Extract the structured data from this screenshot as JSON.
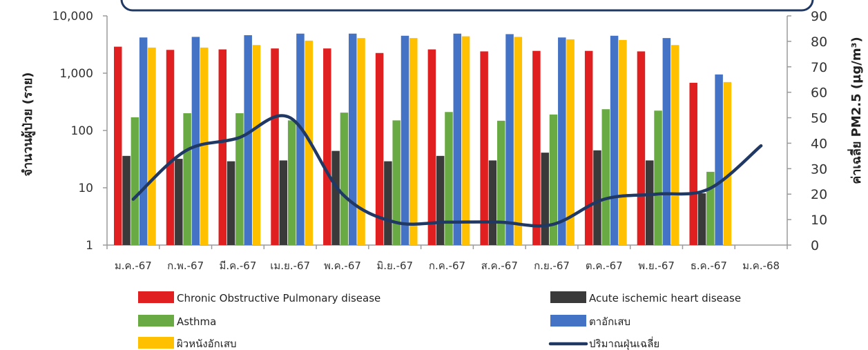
{
  "chart_data": {
    "type": "bar",
    "title": "",
    "ylabel": "จำนวนผู้ป่วย (ราย)",
    "y2label": "ค่าเฉลี่ย PM2.5 (µg/m³)",
    "y_scale": "log",
    "ylim": [
      1,
      10000
    ],
    "y_ticks": [
      "1",
      "10",
      "100",
      "1,000",
      "10,000"
    ],
    "y2lim": [
      0,
      90
    ],
    "y2_ticks": [
      "0",
      "10",
      "20",
      "30",
      "40",
      "50",
      "60",
      "70",
      "80",
      "90"
    ],
    "categories": [
      "ม.ค.-67",
      "ก.พ.-67",
      "มี.ค.-67",
      "เม.ย.-67",
      "พ.ค.-67",
      "มิ.ย.-67",
      "ก.ค.-67",
      "ส.ค.-67",
      "ก.ย.-67",
      "ต.ค.-67",
      "พ.ย.-67",
      "ธ.ค.-67",
      "ม.ค.-68"
    ],
    "legend_position": "bottom",
    "grid": false,
    "series": [
      {
        "name": "Chronic Obstructive Pulmonary disease",
        "color": "#e02020",
        "values": [
          2900,
          2550,
          2600,
          2700,
          2700,
          2250,
          2600,
          2400,
          2450,
          2450,
          2400,
          680,
          null
        ]
      },
      {
        "name": "Acute ischemic heart disease",
        "color": "#3a3a3a",
        "values": [
          36,
          32,
          29,
          30,
          44,
          29,
          36,
          30,
          41,
          45,
          30,
          8,
          null
        ]
      },
      {
        "name": "Asthma",
        "color": "#6aaa44",
        "values": [
          170,
          200,
          200,
          150,
          205,
          150,
          210,
          148,
          190,
          235,
          222,
          19,
          null
        ]
      },
      {
        "name": "ตาอักเสบ",
        "color": "#4472c4",
        "values": [
          4200,
          4300,
          4600,
          4900,
          4900,
          4500,
          4900,
          4800,
          4200,
          4500,
          4100,
          950,
          null
        ]
      },
      {
        "name": "ผิวหนังอักเสบ",
        "color": "#ffc000",
        "values": [
          2800,
          2800,
          3100,
          3700,
          4100,
          4100,
          4400,
          4300,
          3900,
          3800,
          3100,
          700,
          null
        ]
      }
    ],
    "line_series": {
      "name": "ปริมาณฝุ่นเฉลี่ย",
      "color": "#203864",
      "axis": "right",
      "values": [
        18,
        37,
        42,
        50,
        20,
        9,
        9,
        9,
        8,
        18,
        20,
        22,
        39
      ]
    }
  }
}
